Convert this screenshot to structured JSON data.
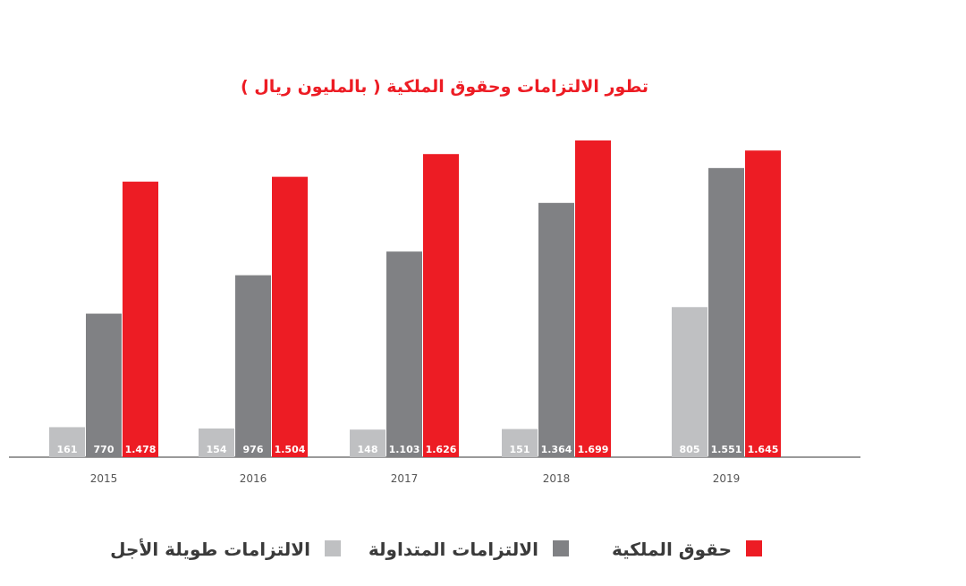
{
  "chart_data": {
    "type": "bar",
    "title": "تطور الالتزامات وحقوق الملكية ( بالمليون ريال )",
    "categories": [
      "2015",
      "2016",
      "2017",
      "2018",
      "2019"
    ],
    "series": [
      {
        "name": "الالتزامات طويلة الأجل",
        "color": "#bfc0c2",
        "values": [
          161,
          154,
          148,
          151,
          805
        ],
        "labels": [
          "161",
          "154",
          "148",
          "151",
          "805"
        ]
      },
      {
        "name": "الالتزامات المتداولة",
        "color": "#808184",
        "values": [
          770,
          976,
          1103,
          1364,
          1551
        ],
        "labels": [
          "770",
          "976",
          "1.103",
          "1.364",
          "1.551"
        ]
      },
      {
        "name": "حقوق الملكية",
        "color": "#ed1c24",
        "values": [
          1478,
          1504,
          1626,
          1699,
          1645
        ],
        "labels": [
          "1.478",
          "1.504",
          "1.626",
          "1.699",
          "1.645"
        ]
      }
    ],
    "ylim": [
      0,
      1820
    ],
    "grid": false,
    "legend_position": "bottom",
    "title_color": "#ed1c24",
    "axis_color": "#9a9a9a"
  }
}
